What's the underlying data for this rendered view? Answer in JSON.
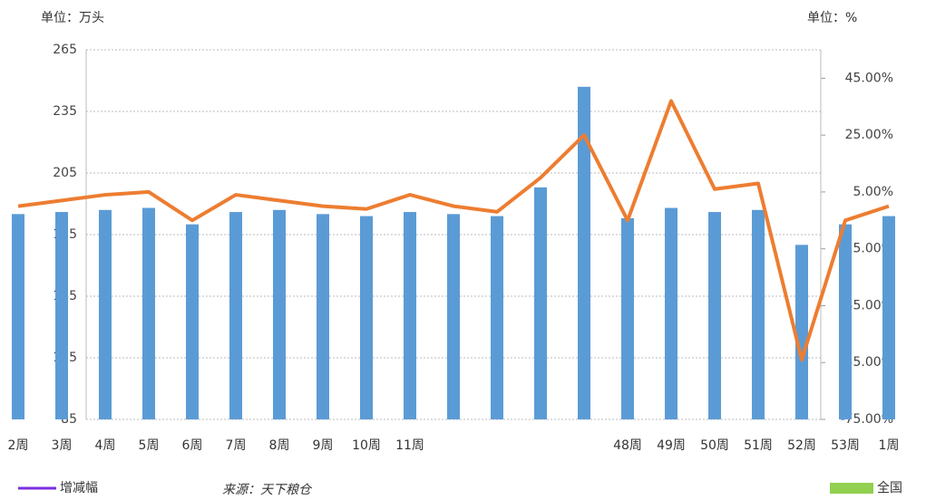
{
  "chart_data": {
    "type": "bar-line",
    "unit_left": "单位：万头",
    "unit_right": "单位：%",
    "source": "来源：天下粮仓",
    "categories": [
      "2周",
      "3周",
      "4周",
      "5周",
      "6周",
      "7周",
      "8周",
      "9周",
      "10周",
      "11周",
      null,
      null,
      null,
      null,
      "48周",
      "49周",
      "50周",
      "51周",
      "52周",
      "53周",
      "1周"
    ],
    "series": [
      {
        "type": "bar",
        "color": "#5b9bd5",
        "values": [
          185,
          186,
          187,
          188,
          180,
          186,
          187,
          185,
          184,
          186,
          185,
          184,
          198,
          247,
          183,
          188,
          186,
          187,
          170,
          180,
          184
        ]
      },
      {
        "type": "line",
        "axis": "y2",
        "color": "#ed7d31",
        "values": [
          0,
          2,
          4,
          5,
          -5,
          4,
          2,
          0,
          -1,
          4,
          0,
          -2,
          10,
          25,
          -5,
          37,
          6,
          8,
          -54,
          -5,
          0
        ]
      }
    ],
    "legend": [
      {
        "name": "增减幅",
        "color": "#7b2fe0"
      },
      {
        "name": "全国",
        "color": "#92d050"
      }
    ],
    "ylim": [
      85,
      265
    ],
    "yticks": [
      85,
      115,
      145,
      175,
      205,
      235,
      265
    ],
    "y2lim": [
      -75,
      55
    ],
    "y2ticks": [
      {
        "value": -75,
        "label": "-75.00%"
      },
      {
        "value": -55,
        "label": "-55.00%"
      },
      {
        "value": -35,
        "label": "-35.00%"
      },
      {
        "value": -15,
        "label": "-15.00%"
      },
      {
        "value": 5,
        "label": "5.00%"
      },
      {
        "value": 25,
        "label": "25.00%"
      },
      {
        "value": 45,
        "label": "45.00%"
      }
    ],
    "grid": true
  }
}
